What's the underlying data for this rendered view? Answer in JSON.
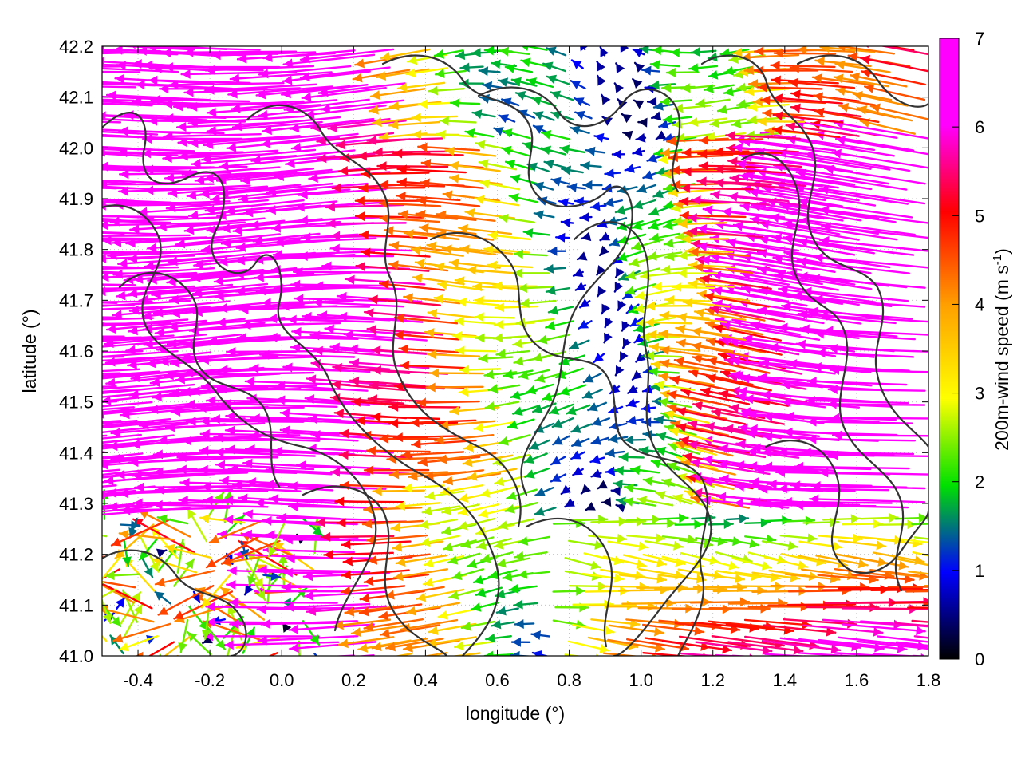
{
  "chart_data": {
    "type": "vector-field",
    "title": "",
    "xlabel": "longitude (°)",
    "ylabel": "latitude (°)",
    "xlim": [
      -0.5,
      1.8
    ],
    "ylim": [
      41.0,
      42.2
    ],
    "x_ticks": [
      "-0.4",
      "-0.2",
      "0.0",
      "0.2",
      "0.4",
      "0.6",
      "0.8",
      "1.0",
      "1.2",
      "1.4",
      "1.6",
      "1.8"
    ],
    "x_tick_values": [
      -0.4,
      -0.2,
      0.0,
      0.2,
      0.4,
      0.6,
      0.8,
      1.0,
      1.2,
      1.4,
      1.6,
      1.8
    ],
    "y_ticks": [
      "41.0",
      "41.1",
      "41.2",
      "41.3",
      "41.4",
      "41.5",
      "41.6",
      "41.7",
      "41.8",
      "41.9",
      "42.0",
      "42.1",
      "42.2"
    ],
    "y_tick_values": [
      41.0,
      41.1,
      41.2,
      41.3,
      41.4,
      41.5,
      41.6,
      41.7,
      41.8,
      41.9,
      42.0,
      42.1,
      42.2
    ],
    "grid": true,
    "colorbar": {
      "label_main": "200m-wind speed (m s",
      "label_sup": "-1",
      "label_end": ")",
      "range": [
        0,
        7
      ],
      "ticks": [
        "0",
        "1",
        "2",
        "3",
        "4",
        "5",
        "6",
        "7"
      ],
      "tick_values": [
        0,
        1,
        2,
        3,
        4,
        5,
        6,
        7
      ],
      "palette": [
        "#000000",
        "#0000ff",
        "#00e000",
        "#ffff00",
        "#ffa000",
        "#ff0000",
        "#ff00ff"
      ]
    },
    "wind_field_summary": {
      "dominant_direction": "westward (easterly flow)",
      "max_speed_region": "west half and north-east, >= 7 m s-1",
      "calm_zone": "near longitude 0.9-1.0, latitude 41.3-42.0",
      "eastward_flow_region": "south-east corner, latitude 41.0-41.3"
    }
  }
}
